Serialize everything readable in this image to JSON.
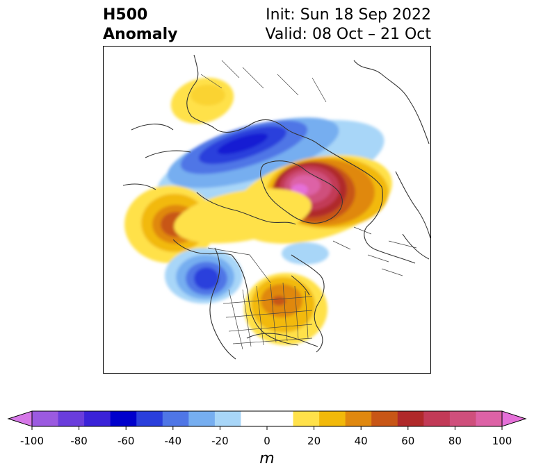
{
  "title": {
    "left_line1": "H500",
    "left_line2": "Anomaly",
    "right_line1": "Init: Sun 18 Sep 2022",
    "right_line2": "Valid: 08 Oct – 21 Oct"
  },
  "colorbar": {
    "min": -100,
    "max": 100,
    "step": 10,
    "colors": [
      "#d678e8",
      "#9b5ae0",
      "#6a3ddc",
      "#3a22d8",
      "#0000cc",
      "#2a3fdc",
      "#4f76e6",
      "#76aef0",
      "#a8d6f8",
      "#ffffff",
      "#ffffff",
      "#ffe14a",
      "#f2b90a",
      "#e0880f",
      "#c85616",
      "#b0292a",
      "#c23a57",
      "#cf4f7c",
      "#dd62a6",
      "#e570d8"
    ],
    "tick_values": [
      -100,
      -80,
      -60,
      -40,
      -20,
      0,
      20,
      40,
      60,
      80,
      100
    ],
    "tick_labels": [
      "-100",
      "-80",
      "-60",
      "-40",
      "-20",
      "0",
      "20",
      "40",
      "60",
      "80",
      "100"
    ],
    "unit": "m"
  },
  "map": {
    "projection": "north-polar-stereographic",
    "field": "500 hPa geopotential height anomaly",
    "anomaly_features": [
      {
        "region": "Greenland / Baffin Bay",
        "sign": "positive",
        "peak_m": 85
      },
      {
        "region": "Northern Siberia / Kara Sea",
        "sign": "negative",
        "peak_m": -65
      },
      {
        "region": "Northwest Europe / Scandinavia",
        "sign": "positive",
        "peak_m": 20
      },
      {
        "region": "Eastern Bering Sea / Kamchatka",
        "sign": "positive",
        "peak_m": 45
      },
      {
        "region": "Gulf of Alaska",
        "sign": "negative",
        "peak_m": -65
      },
      {
        "region": "Great Lakes / Eastern Canada",
        "sign": "positive",
        "peak_m": 50
      },
      {
        "region": "Beaufort Sea",
        "sign": "negative",
        "peak_m": -20
      }
    ]
  }
}
